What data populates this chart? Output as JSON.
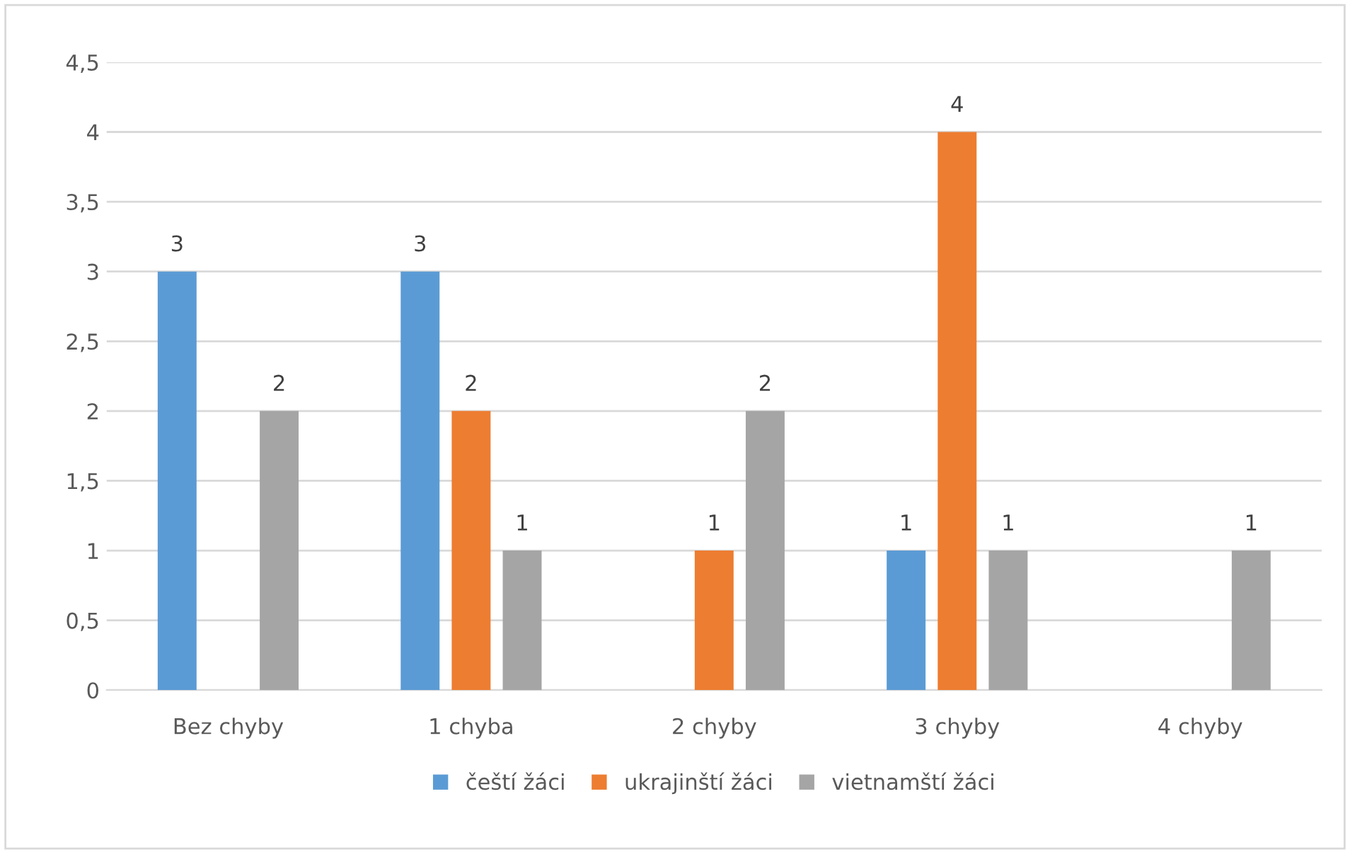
{
  "chart_data": {
    "type": "bar",
    "categories": [
      "Bez chyby",
      "1 chyba",
      "2 chyby",
      "3 chyby",
      "4 chyby"
    ],
    "series": [
      {
        "name": "čeští žáci",
        "color": "#5b9bd5",
        "values": [
          3,
          3,
          null,
          1,
          null
        ]
      },
      {
        "name": "ukrajinští žáci",
        "color": "#ed7d31",
        "values": [
          null,
          2,
          1,
          4,
          null
        ]
      },
      {
        "name": "vietnamští žáci",
        "color": "#a5a5a5",
        "values": [
          2,
          1,
          2,
          1,
          1
        ]
      }
    ],
    "ylim": [
      0,
      4.5
    ],
    "yticks": [
      0,
      {
        "value": 0.5,
        "label": "0,5"
      },
      1,
      {
        "value": 1.5,
        "label": "1,5"
      },
      2,
      {
        "value": 2.5,
        "label": "2,5"
      },
      3,
      {
        "value": 3.5,
        "label": "3,5"
      },
      4,
      {
        "value": 4.5,
        "label": "4,5"
      }
    ],
    "grid": "y",
    "legend": "bottom",
    "data_labels": true
  }
}
